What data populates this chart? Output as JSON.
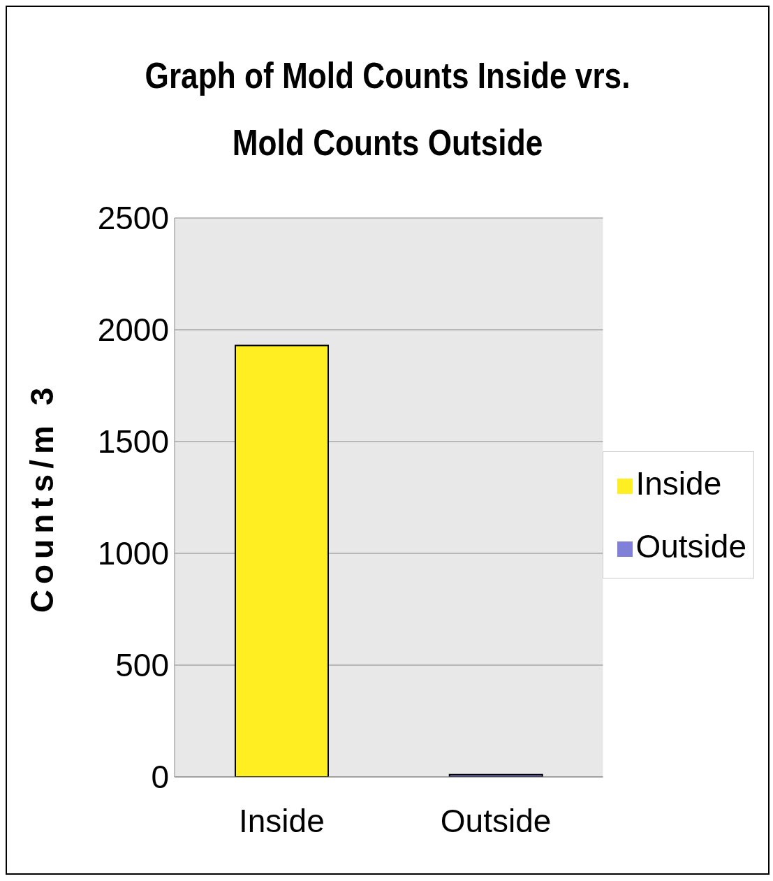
{
  "chart_data": {
    "type": "bar",
    "title": "Graph of Mold Counts Inside vrs. Mold Counts Outside",
    "ylabel": "Counts/m 3",
    "categories": [
      "Inside",
      "Outside"
    ],
    "series": [
      {
        "name": "Inside",
        "color": "#ffee22",
        "values": [
          1930,
          null
        ]
      },
      {
        "name": "Outside",
        "color": "#8080d8",
        "values": [
          null,
          10
        ]
      }
    ],
    "ylim": [
      0,
      2500
    ],
    "yticks": [
      0,
      500,
      1000,
      1500,
      2000,
      2500
    ],
    "grid": "y",
    "legend": "right"
  }
}
